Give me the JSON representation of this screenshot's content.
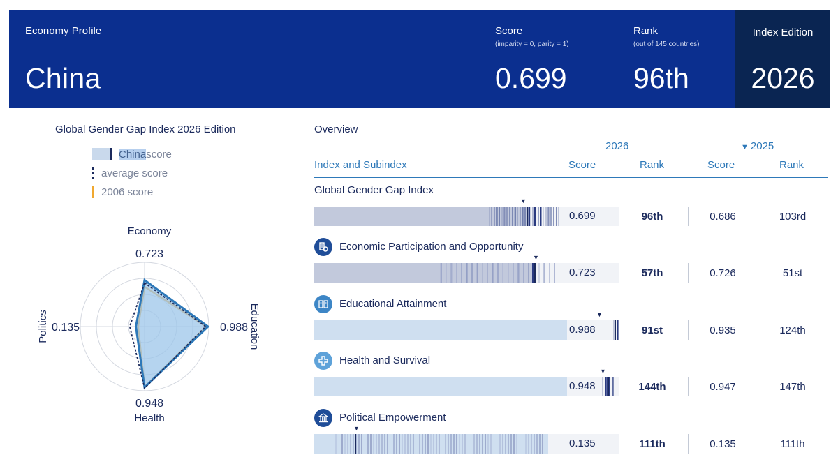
{
  "header": {
    "profile_label": "Economy Profile",
    "country": "China",
    "score_label": "Score",
    "score_sub": "(imparity = 0, parity = 1)",
    "score_value": "0.699",
    "rank_label": "Rank",
    "rank_sub": "(out of 145 countries)",
    "rank_value": "96th",
    "edition_label": "Index Edition",
    "edition_value": "2026"
  },
  "radar": {
    "title": "Global Gender Gap Index 2026 Edition",
    "legend": {
      "china_word": "China",
      "china_rest": " score",
      "average": "average score",
      "baseline": "2006 score"
    },
    "axes": [
      {
        "name": "Economy",
        "value": "0.723"
      },
      {
        "name": "Education",
        "value": "0.988"
      },
      {
        "name": "Health",
        "value": "0.948"
      },
      {
        "name": "Politics",
        "value": "0.135"
      }
    ],
    "colors": {
      "china_fill": "#9cc5ea",
      "china_stroke": "#2e79b9",
      "average": "#1b2a5c",
      "baseline": "#f0a830"
    }
  },
  "overview": {
    "title": "Overview",
    "year_current": "2026",
    "year_previous": "2025",
    "headers": {
      "index": "Index and Subindex",
      "score": "Score",
      "rank": "Rank",
      "prev_score": "Score",
      "prev_rank": "Rank"
    },
    "rows": [
      {
        "label": "Global Gender Gap Index",
        "icon": "",
        "score": "0.699",
        "score_num": 0.699,
        "rank": "96th",
        "prev_score": "0.686",
        "prev_rank": "103rd"
      },
      {
        "label": "Economic Participation and Opportunity",
        "icon": "economy-icon",
        "score": "0.723",
        "score_num": 0.723,
        "rank": "57th",
        "prev_score": "0.726",
        "prev_rank": "51st"
      },
      {
        "label": "Educational Attainment",
        "icon": "book-icon",
        "score": "0.988",
        "score_num": 0.988,
        "rank": "91st",
        "prev_score": "0.935",
        "prev_rank": "124th"
      },
      {
        "label": "Health and Survival",
        "icon": "health-cross-icon",
        "score": "0.948",
        "score_num": 0.948,
        "rank": "144th",
        "prev_score": "0.947",
        "prev_rank": "147th"
      },
      {
        "label": "Political Empowerment",
        "icon": "government-building-icon",
        "score": "0.135",
        "score_num": 0.135,
        "rank": "111th",
        "prev_score": "0.135",
        "prev_rank": "111th"
      }
    ]
  }
}
